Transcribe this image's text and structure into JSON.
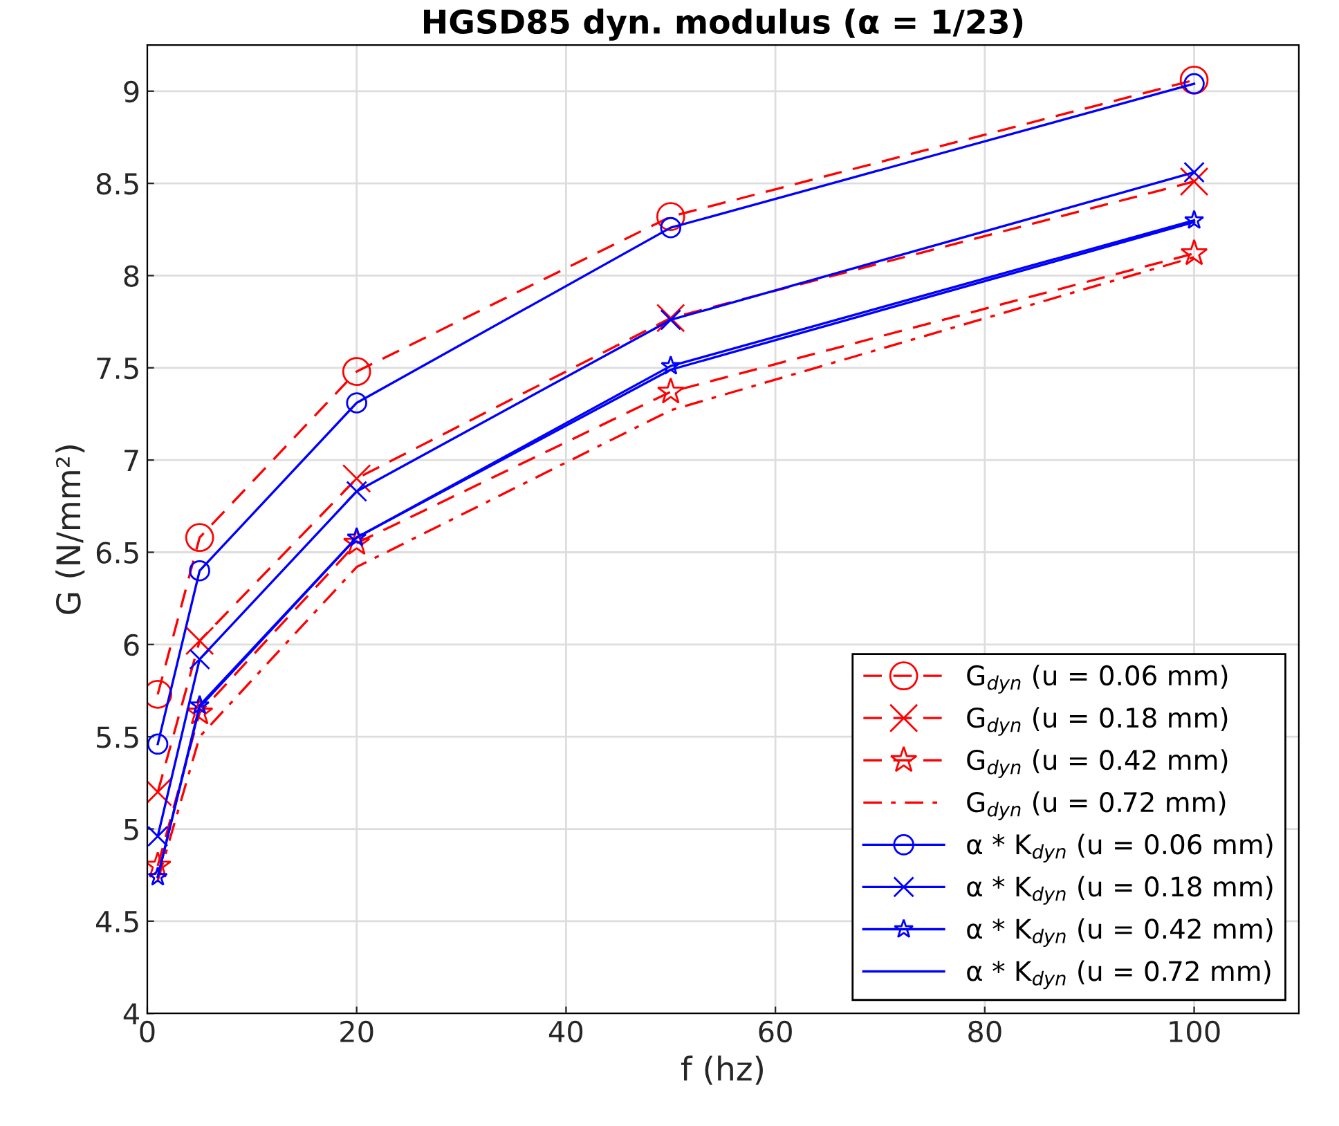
{
  "chart_data": {
    "type": "line",
    "title": "HGSD85 dyn. modulus (α = 1/23)",
    "xlabel": "f (hz)",
    "ylabel": "G (N/mm²)",
    "x": [
      1,
      5,
      20,
      50,
      100
    ],
    "xlim": [
      0,
      110
    ],
    "xticks": [
      0,
      20,
      40,
      60,
      80,
      100
    ],
    "ylim": [
      4,
      9.25
    ],
    "yticks": [
      4,
      4.5,
      5,
      5.5,
      6,
      6.5,
      7,
      7.5,
      8,
      8.5,
      9
    ],
    "grid": true,
    "legend": "bottom right",
    "series": [
      {
        "name": "G$_{dyn}$ (u = 0.06 mm)",
        "color": "#ff0000",
        "marker": "circle",
        "line_style": "dashed",
        "values": [
          5.73,
          6.58,
          7.48,
          8.32,
          9.06
        ]
      },
      {
        "name": "G$_{dyn}$ (u = 0.18 mm)",
        "color": "#ff0000",
        "marker": "cross",
        "line_style": "dashed",
        "values": [
          5.2,
          6.02,
          6.9,
          7.77,
          8.51
        ]
      },
      {
        "name": "G$_{dyn}$ (u = 0.42 mm)",
        "color": "#ff0000",
        "marker": "star",
        "line_style": "dashed",
        "values": [
          4.8,
          5.63,
          6.55,
          7.37,
          8.12
        ]
      },
      {
        "name": "G$_{dyn}$ (u = 0.72 mm)",
        "color": "#ff0000",
        "marker": "none",
        "line_style": "dashdot",
        "values": [
          4.72,
          5.5,
          6.42,
          7.27,
          8.1
        ]
      },
      {
        "name": "α * K$_{dyn}$ (u = 0.06 mm)",
        "color": "#0000ff",
        "marker": "circle",
        "line_style": "solid",
        "values": [
          5.46,
          6.4,
          7.31,
          8.26,
          9.04
        ]
      },
      {
        "name": "α * K$_{dyn}$ (u = 0.18 mm)",
        "color": "#0000ff",
        "marker": "cross",
        "line_style": "solid",
        "values": [
          4.96,
          5.92,
          6.83,
          7.76,
          8.56
        ]
      },
      {
        "name": "α * K$_{dyn}$ (u = 0.42 mm)",
        "color": "#0000ff",
        "marker": "star",
        "line_style": "solid",
        "values": [
          4.74,
          5.67,
          6.58,
          7.51,
          8.3
        ]
      },
      {
        "name": "α * K$_{dyn}$ (u = 0.72 mm)",
        "color": "#0000ff",
        "marker": "none",
        "line_style": "solid",
        "values": [
          4.74,
          5.66,
          6.58,
          7.49,
          8.29
        ]
      }
    ]
  }
}
